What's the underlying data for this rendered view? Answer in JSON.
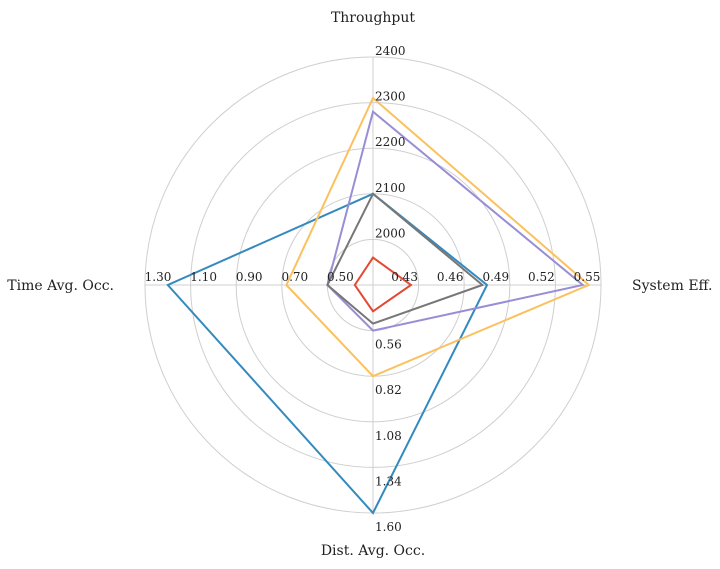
{
  "chart_data": {
    "type": "radar",
    "axes": [
      {
        "name": "Throughput",
        "ticks": [
          "2000",
          "2100",
          "2200",
          "2300",
          "2400"
        ],
        "range": [
          1900,
          2400
        ]
      },
      {
        "name": "System Eff.",
        "ticks": [
          "0.43",
          "0.46",
          "0.49",
          "0.52",
          "0.55"
        ],
        "range": [
          0.4,
          0.55
        ]
      },
      {
        "name": "Dist. Avg. Occ.",
        "ticks": [
          "0.56",
          "0.82",
          "1.08",
          "1.34",
          "1.60"
        ],
        "range": [
          0.3,
          1.6
        ]
      },
      {
        "name": "Time Avg. Occ.",
        "ticks": [
          "0.50",
          "0.70",
          "0.90",
          "1.10",
          "1.30"
        ],
        "range": [
          0.3,
          1.3
        ]
      }
    ],
    "series": [
      {
        "color": "#e24a33",
        "values": [
          1960,
          0.425,
          0.45,
          0.38
        ]
      },
      {
        "color": "#348abd",
        "values": [
          2100,
          0.475,
          1.6,
          1.2
        ]
      },
      {
        "color": "#988ed5",
        "values": [
          2280,
          0.538,
          0.56,
          0.5
        ]
      },
      {
        "color": "#777777",
        "values": [
          2100,
          0.472,
          0.52,
          0.5
        ]
      },
      {
        "color": "#fbc15e",
        "values": [
          2310,
          0.542,
          0.82,
          0.68
        ]
      }
    ],
    "grid": true,
    "legend": "none"
  }
}
